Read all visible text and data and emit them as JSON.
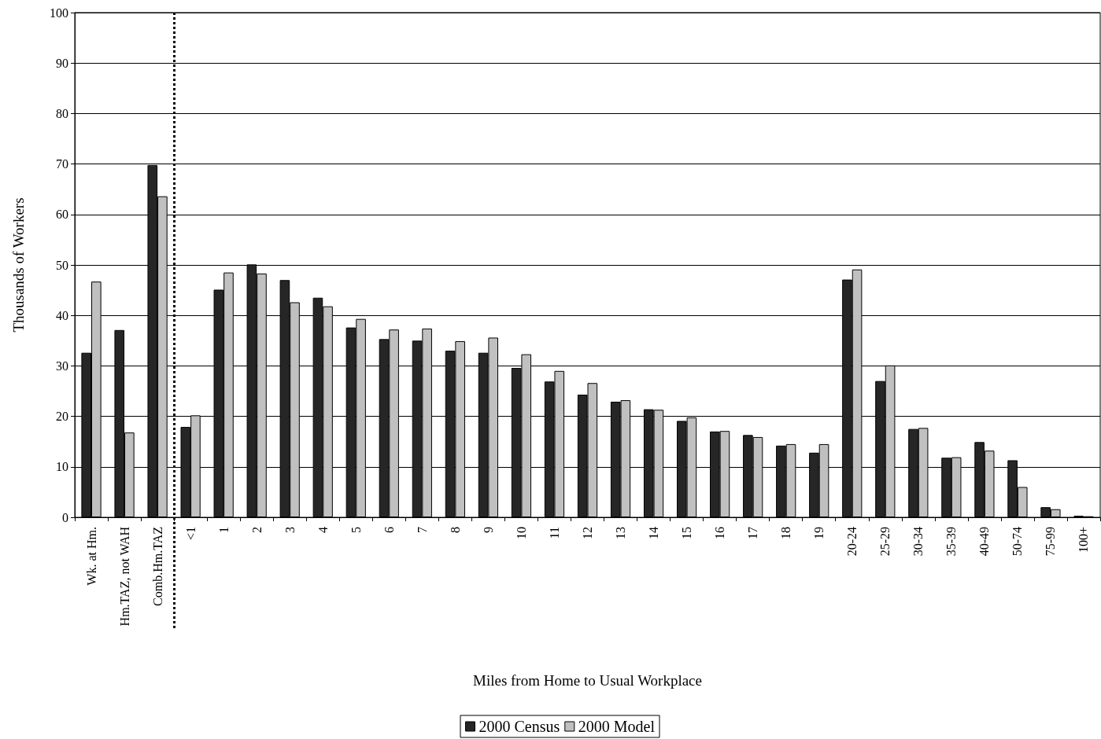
{
  "chart_data": {
    "type": "bar",
    "xlabel": "Miles from Home to Usual Workplace",
    "ylabel": "Thousands of Workers",
    "categories": [
      "Wk. at Hm.",
      "Hm.TAZ, not WAH",
      "Comb.Hm.TAZ",
      "<1",
      "1",
      "2",
      "3",
      "4",
      "5",
      "6",
      "7",
      "8",
      "9",
      "10",
      "11",
      "12",
      "13",
      "14",
      "15",
      "16",
      "17",
      "18",
      "19",
      "20-24",
      "25-29",
      "30-34",
      "35-39",
      "40-49",
      "50-74",
      "75-99",
      "100+"
    ],
    "series": [
      {
        "name": "2000 Census",
        "color": "#262626",
        "values": [
          32.6,
          37.1,
          69.8,
          17.9,
          45.1,
          50.1,
          47.0,
          43.5,
          37.6,
          35.3,
          35.0,
          33.0,
          32.6,
          29.6,
          26.9,
          24.3,
          22.9,
          21.4,
          19.1,
          17.0,
          16.3,
          14.2,
          12.8,
          47.1,
          27.0,
          17.5,
          11.8,
          14.9,
          11.3,
          2.0,
          0.3
        ]
      },
      {
        "name": "2000 Model",
        "color": "#c0c0c0",
        "values": [
          46.7,
          16.8,
          63.6,
          20.2,
          48.5,
          48.3,
          42.6,
          41.8,
          39.3,
          37.2,
          37.4,
          34.9,
          35.6,
          32.3,
          29.0,
          26.6,
          23.2,
          21.3,
          19.8,
          17.1,
          15.9,
          14.5,
          14.5,
          49.1,
          30.1,
          17.7,
          11.9,
          13.2,
          6.0,
          1.6,
          0.2
        ]
      }
    ],
    "ylim": [
      0,
      100
    ],
    "yticks": [
      0,
      10,
      20,
      30,
      40,
      50,
      60,
      70,
      80,
      90,
      100
    ],
    "grid": "y",
    "legend": "bottom"
  }
}
